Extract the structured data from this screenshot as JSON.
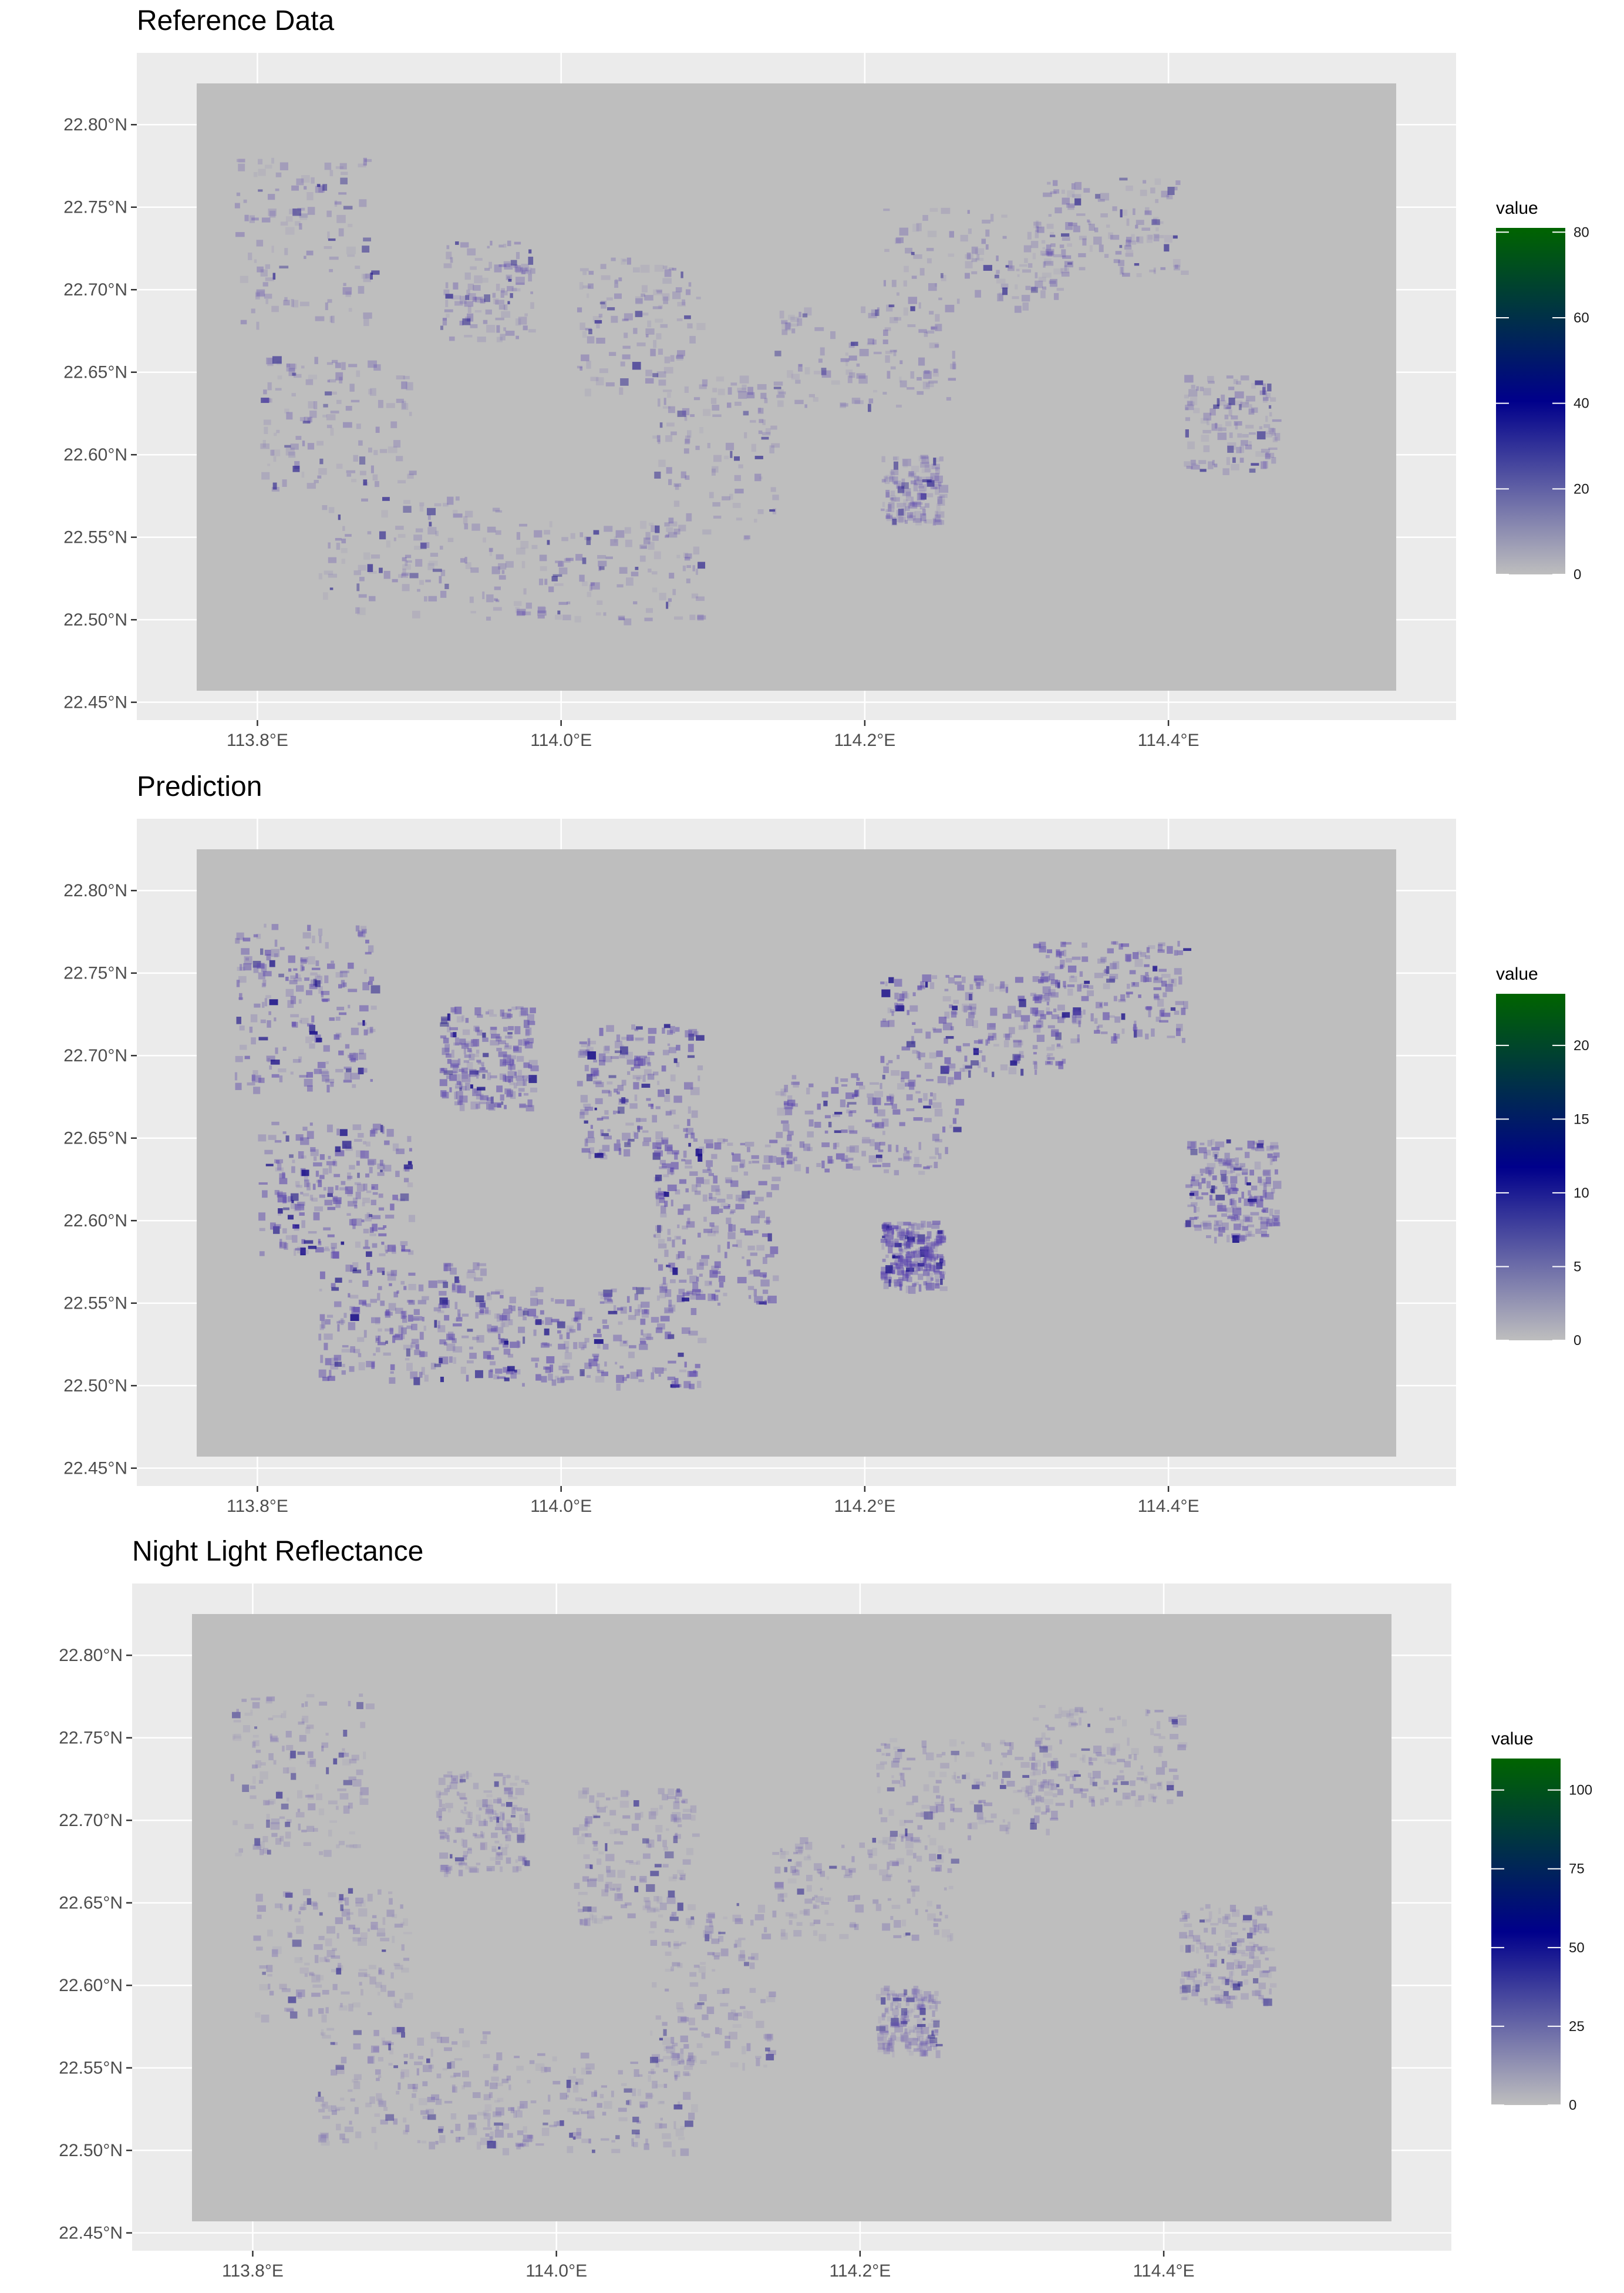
{
  "chart_data": [
    {
      "type": "heatmap",
      "title": "Reference Data",
      "xlabel": "",
      "ylabel": "",
      "x_ticks": [
        "113.8°E",
        "114.0°E",
        "114.2°E",
        "114.4°E"
      ],
      "x_tick_values": [
        113.8,
        114.0,
        114.2,
        114.4
      ],
      "y_ticks": [
        "22.45°N",
        "22.50°N",
        "22.55°N",
        "22.60°N",
        "22.65°N",
        "22.70°N",
        "22.75°N",
        "22.80°N"
      ],
      "y_tick_values": [
        22.45,
        22.5,
        22.55,
        22.6,
        22.65,
        22.7,
        22.75,
        22.8
      ],
      "xlim": [
        113.76,
        114.55
      ],
      "ylim": [
        22.457,
        22.825
      ],
      "grid": true,
      "legend": {
        "title": "value",
        "placement": "right",
        "ticks": [
          "0",
          "20",
          "40",
          "60",
          "80"
        ],
        "tick_values": [
          0,
          20,
          40,
          60,
          80
        ],
        "range": [
          0,
          81
        ]
      },
      "colors": {
        "low": "#bebebe",
        "mid": "#00008b",
        "high": "#006400",
        "panel": "#ebebeb",
        "grid": "#ffffff"
      }
    },
    {
      "type": "heatmap",
      "title": "Prediction",
      "xlabel": "",
      "ylabel": "",
      "x_ticks": [
        "113.8°E",
        "114.0°E",
        "114.2°E",
        "114.4°E"
      ],
      "x_tick_values": [
        113.8,
        114.0,
        114.2,
        114.4
      ],
      "y_ticks": [
        "22.45°N",
        "22.50°N",
        "22.55°N",
        "22.60°N",
        "22.65°N",
        "22.70°N",
        "22.75°N",
        "22.80°N"
      ],
      "y_tick_values": [
        22.45,
        22.5,
        22.55,
        22.6,
        22.65,
        22.7,
        22.75,
        22.8
      ],
      "xlim": [
        113.76,
        114.55
      ],
      "ylim": [
        22.457,
        22.825
      ],
      "grid": true,
      "legend": {
        "title": "value",
        "placement": "right",
        "ticks": [
          "0",
          "5",
          "10",
          "15",
          "20"
        ],
        "tick_values": [
          0,
          5,
          10,
          15,
          20
        ],
        "range": [
          0,
          23.5
        ]
      },
      "colors": {
        "low": "#bebebe",
        "mid": "#00008b",
        "high": "#006400",
        "panel": "#ebebeb",
        "grid": "#ffffff"
      }
    },
    {
      "type": "heatmap",
      "title": "Night Light Reflectance",
      "xlabel": "",
      "ylabel": "",
      "x_ticks": [
        "113.8°E",
        "114.0°E",
        "114.2°E",
        "114.4°E"
      ],
      "x_tick_values": [
        113.8,
        114.0,
        114.2,
        114.4
      ],
      "y_ticks": [
        "22.45°N",
        "22.50°N",
        "22.55°N",
        "22.60°N",
        "22.65°N",
        "22.70°N",
        "22.75°N",
        "22.80°N"
      ],
      "y_tick_values": [
        22.45,
        22.5,
        22.55,
        22.6,
        22.65,
        22.7,
        22.75,
        22.8
      ],
      "xlim": [
        113.76,
        114.55
      ],
      "ylim": [
        22.457,
        22.825
      ],
      "grid": true,
      "legend": {
        "title": "value",
        "placement": "right",
        "ticks": [
          "0",
          "25",
          "50",
          "75",
          "100"
        ],
        "tick_values": [
          0,
          25,
          50,
          75,
          100
        ],
        "range": [
          0,
          110
        ]
      },
      "colors": {
        "low": "#bebebe",
        "mid": "#00008b",
        "high": "#006400",
        "panel": "#ebebeb",
        "grid": "#ffffff"
      }
    }
  ]
}
